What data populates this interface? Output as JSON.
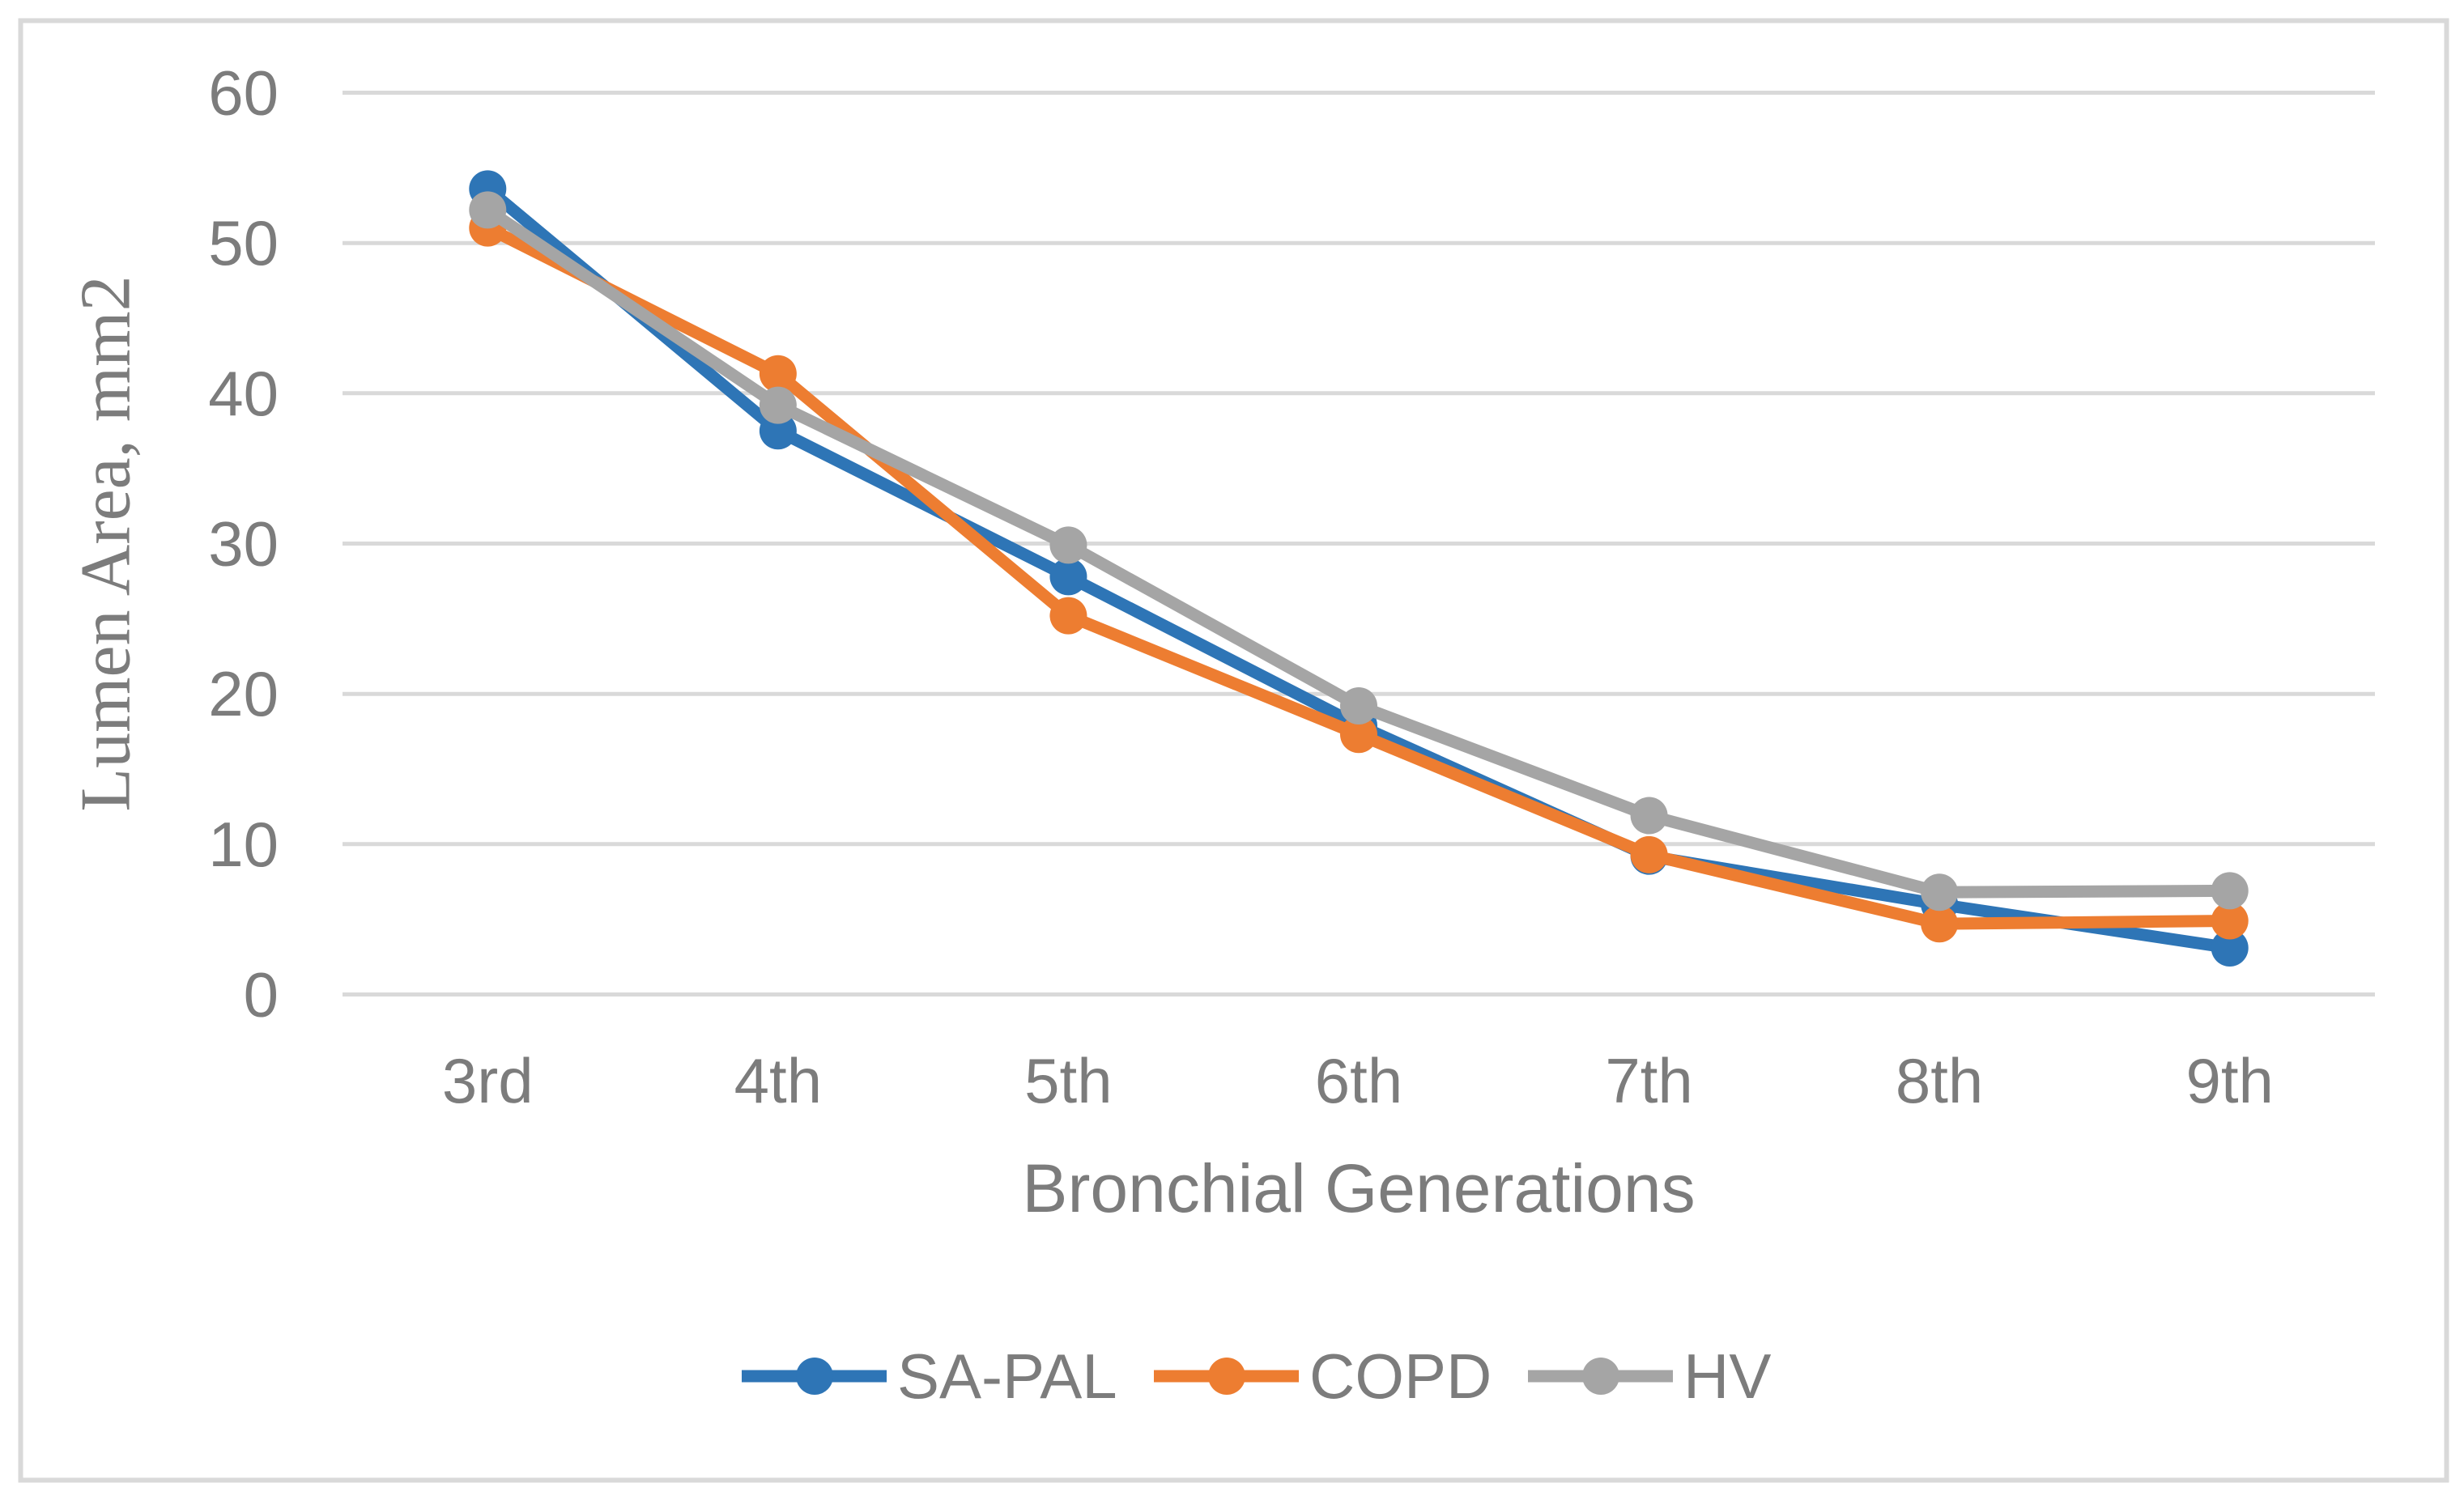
{
  "figure": {
    "background": "#FFFFFF",
    "border_color": "#D9D9D9"
  },
  "chart_data": {
    "type": "line",
    "title": "",
    "xlabel": "Bronchial Generations",
    "ylabel": "Lumen Area, mm2",
    "categories": [
      "3rd",
      "4th",
      "5th",
      "6th",
      "7th",
      "8th",
      "9th"
    ],
    "y_ticks": [
      "60",
      "50",
      "40",
      "30",
      "20",
      "10",
      "0"
    ],
    "ylim": [
      0,
      60
    ],
    "grid": "horizontal",
    "gridline_color": "#D9D9D9",
    "axis_text_color": "#7C7C7C",
    "legend_position": "bottom",
    "marker_shape": "circle",
    "series": [
      {
        "name": "SA-PAL",
        "color": "#2E75B6",
        "values": [
          53.6,
          37.5,
          27.8,
          17.9,
          9.2,
          6.0,
          3.1
        ]
      },
      {
        "name": "COPD",
        "color": "#ED7D31",
        "values": [
          51.0,
          41.3,
          25.2,
          17.3,
          9.3,
          4.7,
          4.9
        ]
      },
      {
        "name": "HV",
        "color": "#A5A5A5",
        "values": [
          52.2,
          39.2,
          29.9,
          19.2,
          11.9,
          6.8,
          6.9
        ]
      }
    ]
  }
}
